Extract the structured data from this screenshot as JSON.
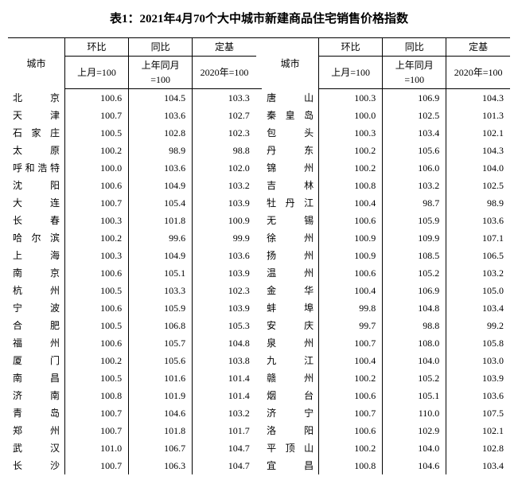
{
  "title": "表1：2021年4月70个大中城市新建商品住宅销售价格指数",
  "headers": {
    "city": "城市",
    "group_mom": "环比",
    "group_yoy": "同比",
    "group_fixed": "定基",
    "sub_mom": "上月=100",
    "sub_yoy": "上年同月=100",
    "sub_fixed": "2020年=100"
  },
  "rows": [
    {
      "l_city": "北　京",
      "l_mom": "100.6",
      "l_yoy": "104.5",
      "l_fix": "103.3",
      "r_city": "唐　山",
      "r_mom": "100.3",
      "r_yoy": "106.9",
      "r_fix": "104.3"
    },
    {
      "l_city": "天　津",
      "l_mom": "100.7",
      "l_yoy": "103.6",
      "l_fix": "102.7",
      "r_city": "秦皇岛",
      "r_mom": "100.0",
      "r_yoy": "102.5",
      "r_fix": "101.3"
    },
    {
      "l_city": "石家庄",
      "l_mom": "100.5",
      "l_yoy": "102.8",
      "l_fix": "102.3",
      "r_city": "包　头",
      "r_mom": "100.3",
      "r_yoy": "103.4",
      "r_fix": "102.1"
    },
    {
      "l_city": "太　原",
      "l_mom": "100.2",
      "l_yoy": "98.9",
      "l_fix": "98.8",
      "r_city": "丹　东",
      "r_mom": "100.2",
      "r_yoy": "105.6",
      "r_fix": "104.3"
    },
    {
      "l_city": "呼和浩特",
      "l_mom": "100.0",
      "l_yoy": "103.6",
      "l_fix": "102.0",
      "r_city": "锦　州",
      "r_mom": "100.2",
      "r_yoy": "106.0",
      "r_fix": "104.0"
    },
    {
      "l_city": "沈　阳",
      "l_mom": "100.6",
      "l_yoy": "104.9",
      "l_fix": "103.2",
      "r_city": "吉　林",
      "r_mom": "100.8",
      "r_yoy": "103.2",
      "r_fix": "102.5"
    },
    {
      "l_city": "大　连",
      "l_mom": "100.7",
      "l_yoy": "105.4",
      "l_fix": "103.9",
      "r_city": "牡丹江",
      "r_mom": "100.4",
      "r_yoy": "98.7",
      "r_fix": "98.9"
    },
    {
      "l_city": "长　春",
      "l_mom": "100.3",
      "l_yoy": "101.8",
      "l_fix": "100.9",
      "r_city": "无　锡",
      "r_mom": "100.6",
      "r_yoy": "105.9",
      "r_fix": "103.6"
    },
    {
      "l_city": "哈尔滨",
      "l_mom": "100.2",
      "l_yoy": "99.6",
      "l_fix": "99.9",
      "r_city": "徐　州",
      "r_mom": "100.9",
      "r_yoy": "109.9",
      "r_fix": "107.1"
    },
    {
      "l_city": "上　海",
      "l_mom": "100.3",
      "l_yoy": "104.9",
      "l_fix": "103.6",
      "r_city": "扬　州",
      "r_mom": "100.9",
      "r_yoy": "108.5",
      "r_fix": "106.5"
    },
    {
      "l_city": "南　京",
      "l_mom": "100.6",
      "l_yoy": "105.1",
      "l_fix": "103.9",
      "r_city": "温　州",
      "r_mom": "100.6",
      "r_yoy": "105.2",
      "r_fix": "103.2"
    },
    {
      "l_city": "杭　州",
      "l_mom": "100.5",
      "l_yoy": "103.3",
      "l_fix": "102.3",
      "r_city": "金　华",
      "r_mom": "100.4",
      "r_yoy": "106.9",
      "r_fix": "105.0"
    },
    {
      "l_city": "宁　波",
      "l_mom": "100.6",
      "l_yoy": "105.9",
      "l_fix": "103.9",
      "r_city": "蚌　埠",
      "r_mom": "99.8",
      "r_yoy": "104.8",
      "r_fix": "103.4"
    },
    {
      "l_city": "合　肥",
      "l_mom": "100.5",
      "l_yoy": "106.8",
      "l_fix": "105.3",
      "r_city": "安　庆",
      "r_mom": "99.7",
      "r_yoy": "98.8",
      "r_fix": "99.2"
    },
    {
      "l_city": "福　州",
      "l_mom": "100.6",
      "l_yoy": "105.7",
      "l_fix": "104.8",
      "r_city": "泉　州",
      "r_mom": "100.7",
      "r_yoy": "108.0",
      "r_fix": "105.8"
    },
    {
      "l_city": "厦　门",
      "l_mom": "100.2",
      "l_yoy": "105.6",
      "l_fix": "103.8",
      "r_city": "九　江",
      "r_mom": "100.4",
      "r_yoy": "104.0",
      "r_fix": "103.0"
    },
    {
      "l_city": "南　昌",
      "l_mom": "100.5",
      "l_yoy": "101.6",
      "l_fix": "101.4",
      "r_city": "赣　州",
      "r_mom": "100.2",
      "r_yoy": "105.2",
      "r_fix": "103.9"
    },
    {
      "l_city": "济　南",
      "l_mom": "100.8",
      "l_yoy": "101.9",
      "l_fix": "101.4",
      "r_city": "烟　台",
      "r_mom": "100.6",
      "r_yoy": "105.1",
      "r_fix": "103.6"
    },
    {
      "l_city": "青　岛",
      "l_mom": "100.7",
      "l_yoy": "104.6",
      "l_fix": "103.2",
      "r_city": "济　宁",
      "r_mom": "100.7",
      "r_yoy": "110.0",
      "r_fix": "107.5"
    },
    {
      "l_city": "郑　州",
      "l_mom": "100.7",
      "l_yoy": "101.8",
      "l_fix": "101.7",
      "r_city": "洛　阳",
      "r_mom": "100.6",
      "r_yoy": "102.9",
      "r_fix": "102.1"
    },
    {
      "l_city": "武　汉",
      "l_mom": "101.0",
      "l_yoy": "106.7",
      "l_fix": "104.7",
      "r_city": "平顶山",
      "r_mom": "100.2",
      "r_yoy": "104.0",
      "r_fix": "102.8"
    },
    {
      "l_city": "长　沙",
      "l_mom": "100.7",
      "l_yoy": "106.3",
      "l_fix": "104.7",
      "r_city": "宜　昌",
      "r_mom": "100.8",
      "r_yoy": "104.6",
      "r_fix": "103.4"
    }
  ]
}
